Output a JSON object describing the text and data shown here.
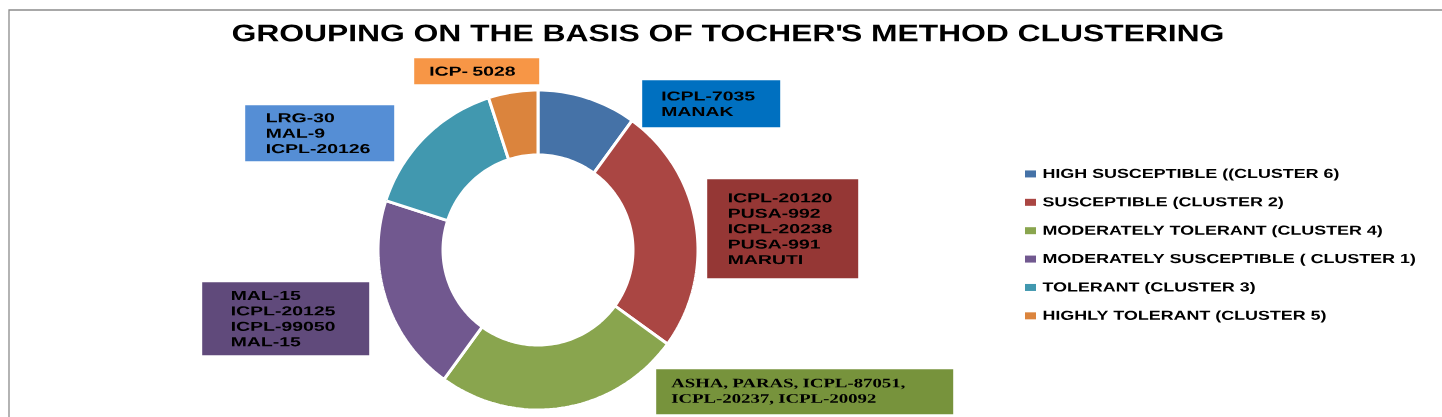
{
  "chart_data": {
    "type": "donut",
    "title": "GROUPING ON THE BASIS OF TOCHER'S METHOD CLUSTERING",
    "categories": [
      "HIGH SUSCEPTIBLE ((CLUSTER 6)",
      "SUSCEPTIBLE (CLUSTER 2)",
      "MODERATELY TOLERANT (CLUSTER 4)",
      "MODERATELY SUSCEPTIBLE ( CLUSTER 1)",
      "TOLERANT (CLUSTER 3)",
      "HIGHLY TOLERANT (CLUSTER 5)"
    ],
    "values": [
      10,
      25,
      25,
      20,
      15,
      5
    ],
    "colors": [
      "#4572a7",
      "#aa4643",
      "#89a54e",
      "#71588f",
      "#4198af",
      "#db843d"
    ],
    "legend": "right",
    "annotations": [
      "ICPL-7035 MANAK",
      "ICPL-20120 PUSA-992 ICPL-20238 PUSA-991 MARUTI",
      "ASHA, PARAS, ICPL-87051, ICPL-20237, ICPL-20092",
      "MAL-15 ICPL-20125 ICPL-99050 MAL-15",
      "LRG-30 MAL-9 ICPL-20126",
      "ICP- 5028"
    ]
  }
}
